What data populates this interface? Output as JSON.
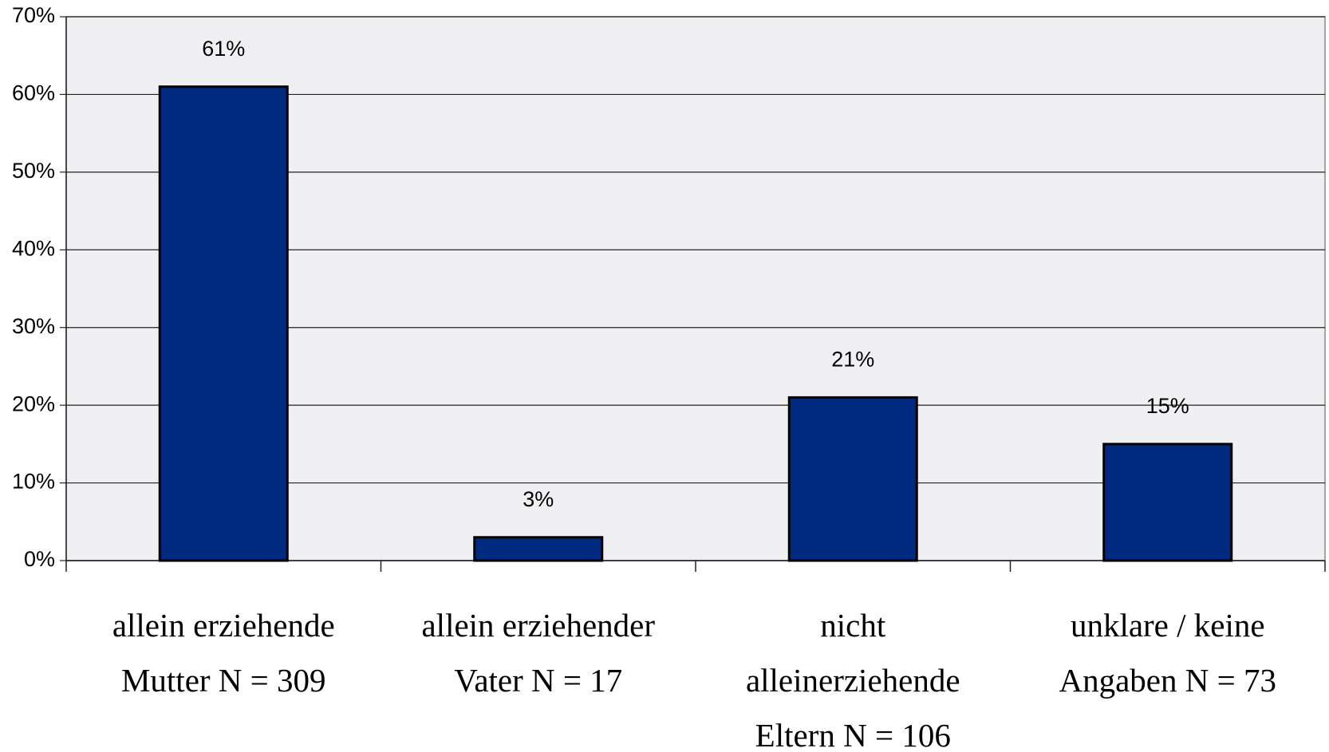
{
  "chart_data": {
    "type": "bar",
    "categories": [
      "allein erziehende Mutter N = 309",
      "allein erziehender Vater N = 17",
      "nicht alleinerziehende Eltern N = 106",
      "unklare / keine Angaben N = 73"
    ],
    "values": [
      61,
      3,
      21,
      15
    ],
    "value_labels": [
      "61%",
      "3%",
      "21%",
      "15%"
    ],
    "color": "#002a7f",
    "ylim": [
      0,
      70
    ],
    "yticks": [
      {
        "value": 0,
        "label": "0%"
      },
      {
        "value": 10,
        "label": "10%"
      },
      {
        "value": 20,
        "label": "20%"
      },
      {
        "value": 30,
        "label": "30%"
      },
      {
        "value": 40,
        "label": "40%"
      },
      {
        "value": 50,
        "label": "50%"
      },
      {
        "value": 60,
        "label": "60%"
      },
      {
        "value": 70,
        "label": "70%"
      }
    ],
    "grid": true
  }
}
